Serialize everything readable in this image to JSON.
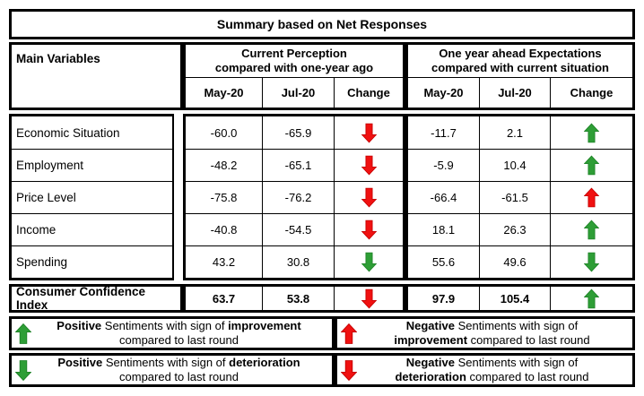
{
  "title": "Summary based on Net Responses",
  "colors": {
    "green": "#2E9E36",
    "green_dark": "#1E8227",
    "red": "#F01111",
    "red_dark": "#C40000",
    "border": "#000000"
  },
  "header": {
    "main_variables": "Main Variables",
    "groups": [
      {
        "line1": "Current Perception",
        "line2": "compared with one-year ago",
        "cols": [
          "May-20",
          "Jul-20",
          "Change"
        ]
      },
      {
        "line1": "One year ahead Expectations",
        "line2": "compared with current situation",
        "cols": [
          "May-20",
          "Jul-20",
          "Change"
        ]
      }
    ]
  },
  "rows": [
    {
      "label": "Economic Situation",
      "cp_may": "-60.0",
      "cp_jul": "-65.9",
      "cp_change": "red-down",
      "ex_may": "-11.7",
      "ex_jul": "2.1",
      "ex_change": "green-up"
    },
    {
      "label": "Employment",
      "cp_may": "-48.2",
      "cp_jul": "-65.1",
      "cp_change": "red-down",
      "ex_may": "-5.9",
      "ex_jul": "10.4",
      "ex_change": "green-up"
    },
    {
      "label": "Price Level",
      "cp_may": "-75.8",
      "cp_jul": "-76.2",
      "cp_change": "red-down",
      "ex_may": "-66.4",
      "ex_jul": "-61.5",
      "ex_change": "red-up"
    },
    {
      "label": "Income",
      "cp_may": "-40.8",
      "cp_jul": "-54.5",
      "cp_change": "red-down",
      "ex_may": "18.1",
      "ex_jul": "26.3",
      "ex_change": "green-up"
    },
    {
      "label": "Spending",
      "cp_may": "43.2",
      "cp_jul": "30.8",
      "cp_change": "green-down",
      "ex_may": "55.6",
      "ex_jul": "49.6",
      "ex_change": "green-down"
    }
  ],
  "cci": {
    "label": "Consumer Confidence Index",
    "cp_may": "63.7",
    "cp_jul": "53.8",
    "cp_change": "red-down",
    "ex_may": "97.9",
    "ex_jul": "105.4",
    "ex_change": "green-up"
  },
  "legend": [
    {
      "arrow": "green-up",
      "lines": [
        [
          {
            "t": "Positive",
            "b": true
          },
          {
            "t": " Sentiments with sign of ",
            "b": false
          },
          {
            "t": "improvement",
            "b": true
          }
        ],
        [
          {
            "t": "compared to last round",
            "b": false
          }
        ]
      ]
    },
    {
      "arrow": "red-up",
      "lines": [
        [
          {
            "t": "Negative",
            "b": true
          },
          {
            "t": " Sentiments with sign of",
            "b": false
          }
        ],
        [
          {
            "t": "improvement",
            "b": true
          },
          {
            "t": " compared to last round",
            "b": false
          }
        ]
      ]
    },
    {
      "arrow": "green-down",
      "lines": [
        [
          {
            "t": "Positive",
            "b": true
          },
          {
            "t": " Sentiments with sign of ",
            "b": false
          },
          {
            "t": "deterioration",
            "b": true
          }
        ],
        [
          {
            "t": "compared to last round",
            "b": false
          }
        ]
      ]
    },
    {
      "arrow": "red-down",
      "lines": [
        [
          {
            "t": "Negative",
            "b": true
          },
          {
            "t": " Sentiments with sign of",
            "b": false
          }
        ],
        [
          {
            "t": "deterioration",
            "b": true
          },
          {
            "t": " compared to last round",
            "b": false
          }
        ]
      ]
    }
  ],
  "chart_data": {
    "type": "table",
    "title": "Summary based on Net Responses",
    "column_groups": [
      "Current Perception compared with one-year ago",
      "One year ahead Expectations compared with current situation"
    ],
    "columns": [
      "Main Variables",
      "May-20",
      "Jul-20",
      "Change",
      "May-20",
      "Jul-20",
      "Change"
    ],
    "rows": [
      [
        "Economic Situation",
        -60.0,
        -65.9,
        "down-red",
        -11.7,
        2.1,
        "up-green"
      ],
      [
        "Employment",
        -48.2,
        -65.1,
        "down-red",
        -5.9,
        10.4,
        "up-green"
      ],
      [
        "Price Level",
        -75.8,
        -76.2,
        "down-red",
        -66.4,
        -61.5,
        "up-red"
      ],
      [
        "Income",
        -40.8,
        -54.5,
        "down-red",
        18.1,
        26.3,
        "up-green"
      ],
      [
        "Spending",
        43.2,
        30.8,
        "down-green",
        55.6,
        49.6,
        "down-green"
      ],
      [
        "Consumer Confidence Index",
        63.7,
        53.8,
        "down-red",
        97.9,
        105.4,
        "up-green"
      ]
    ],
    "legend": [
      "Green up arrow = Positive Sentiments with sign of improvement compared to last round",
      "Red up arrow = Negative Sentiments with sign of improvement compared to last round",
      "Green down arrow = Positive Sentiments with sign of deterioration compared to last round",
      "Red down arrow = Negative Sentiments with sign of deterioration compared to last round"
    ]
  }
}
